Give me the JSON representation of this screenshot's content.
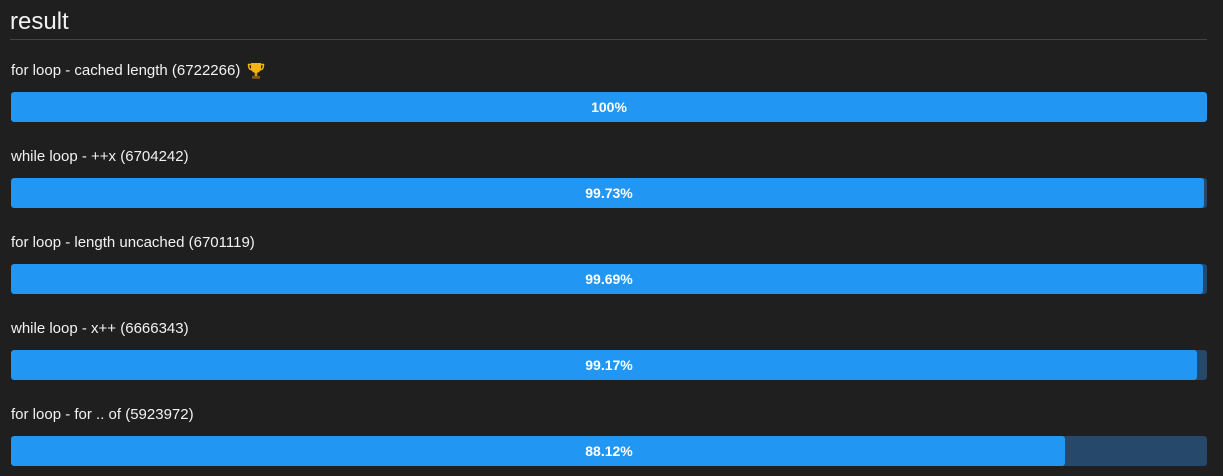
{
  "header": {
    "title": "result"
  },
  "colors": {
    "background": "#1f1f1f",
    "bar_fill": "#2196f3",
    "bar_track": "#25486b",
    "text": "#f2f2f2"
  },
  "results": [
    {
      "label": "for loop - cached length (6722266)",
      "percent_text": "100%",
      "fraction": 1.0,
      "winner": true,
      "icon": "trophy-icon"
    },
    {
      "label": "while loop - ++x (6704242)",
      "percent_text": "99.73%",
      "fraction": 0.9973,
      "winner": false
    },
    {
      "label": "for loop - length uncached (6701119)",
      "percent_text": "99.69%",
      "fraction": 0.9969,
      "winner": false
    },
    {
      "label": "while loop - x++ (6666343)",
      "percent_text": "99.17%",
      "fraction": 0.9917,
      "winner": false
    },
    {
      "label": "for loop - for .. of (5923972)",
      "percent_text": "88.12%",
      "fraction": 0.8812,
      "winner": false
    }
  ]
}
